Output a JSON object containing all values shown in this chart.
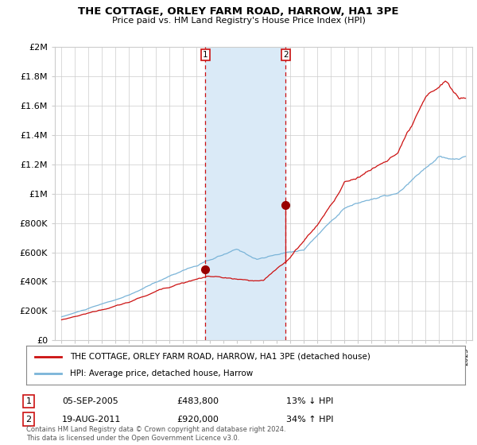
{
  "title": "THE COTTAGE, ORLEY FARM ROAD, HARROW, HA1 3PE",
  "subtitle": "Price paid vs. HM Land Registry's House Price Index (HPI)",
  "legend_line1": "THE COTTAGE, ORLEY FARM ROAD, HARROW, HA1 3PE (detached house)",
  "legend_line2": "HPI: Average price, detached house, Harrow",
  "transaction1_date": "05-SEP-2005",
  "transaction1_price": "£483,800",
  "transaction1_hpi": "13% ↓ HPI",
  "transaction2_date": "19-AUG-2011",
  "transaction2_price": "£920,000",
  "transaction2_hpi": "34% ↑ HPI",
  "footnote": "Contains HM Land Registry data © Crown copyright and database right 2024.\nThis data is licensed under the Open Government Licence v3.0.",
  "hpi_color": "#7ab4d8",
  "price_color": "#cc1111",
  "shaded_color": "#daeaf7",
  "background_color": "#ffffff",
  "grid_color": "#cccccc",
  "transaction1_x": 2005.67,
  "transaction2_x": 2011.63,
  "transaction1_y": 483800,
  "transaction2_y": 920000,
  "shade_x1": 2005.67,
  "shade_x2": 2011.63,
  "ylim": [
    0,
    2000000
  ],
  "xlim_min": 1994.5,
  "xlim_max": 2025.5
}
